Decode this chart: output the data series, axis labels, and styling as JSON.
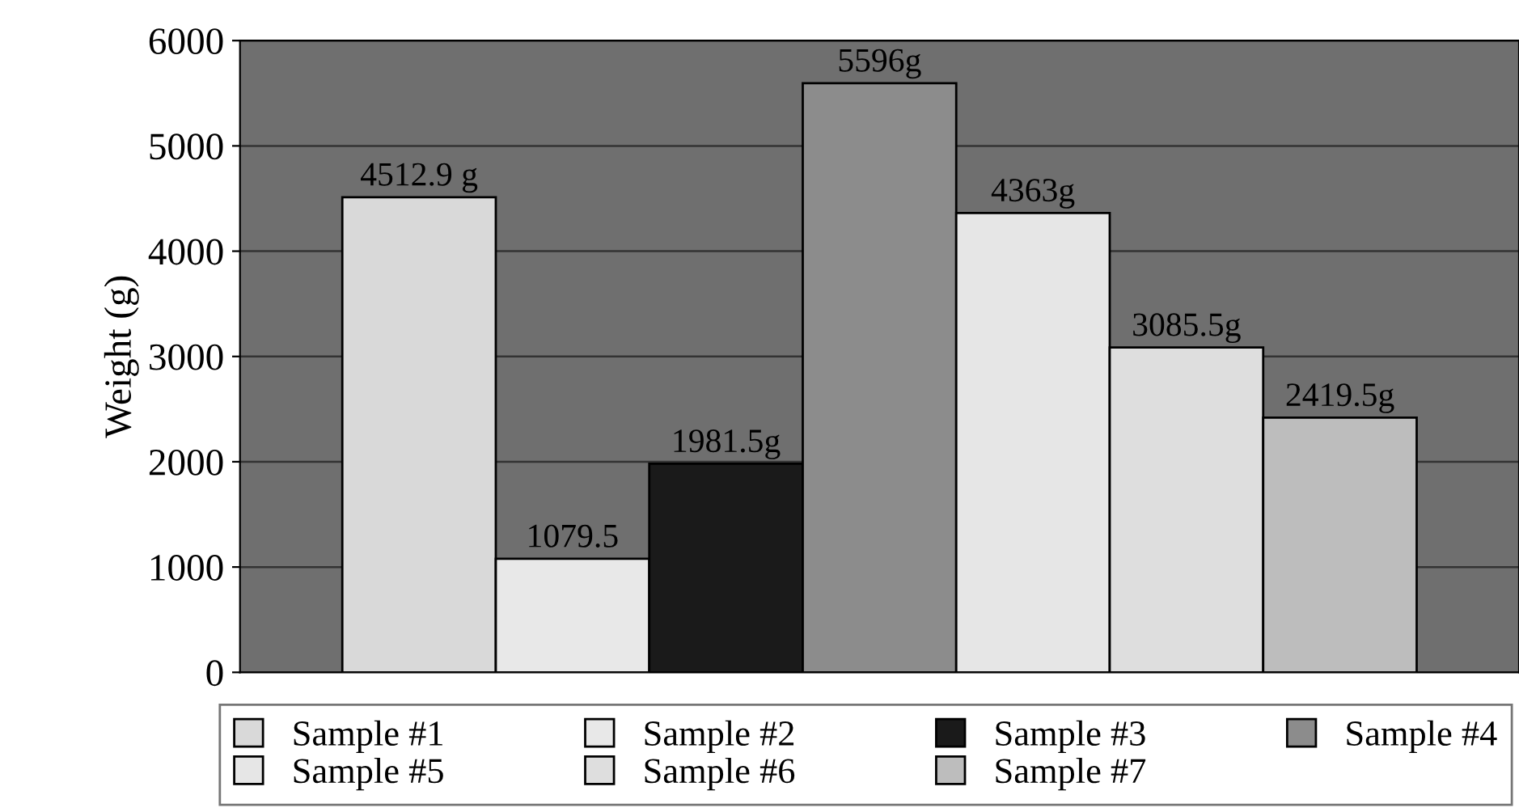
{
  "chart_data": {
    "type": "bar",
    "ylabel": "Weight (g)",
    "categories": [
      null
    ],
    "ylim": [
      0,
      6000
    ],
    "yticks": [
      0,
      1000,
      2000,
      3000,
      4000,
      5000,
      6000
    ],
    "grid": "y",
    "legend": "bottom",
    "series": [
      {
        "name": "Sample #1",
        "color": "#d9d9d9",
        "values": [
          4512.9
        ],
        "value_labels": [
          "4512.9 g"
        ]
      },
      {
        "name": "Sample #2",
        "color": "#e8e8e8",
        "values": [
          1079.5
        ],
        "value_labels": [
          "1079.5"
        ]
      },
      {
        "name": "Sample #3",
        "color": "#1a1a1a",
        "values": [
          1981.5
        ],
        "value_labels": [
          "1981.5g"
        ]
      },
      {
        "name": "Sample #4",
        "color": "#8c8c8c",
        "values": [
          5596
        ],
        "value_labels": [
          "5596g"
        ]
      },
      {
        "name": "Sample #5",
        "color": "#e6e6e6",
        "values": [
          4363
        ],
        "value_labels": [
          "4363g"
        ]
      },
      {
        "name": "Sample #6",
        "color": "#dedede",
        "values": [
          3085.5
        ],
        "value_labels": [
          "3085.5g"
        ]
      },
      {
        "name": "Sample #7",
        "color": "#bdbdbd",
        "values": [
          2419.5
        ],
        "value_labels": [
          "2419.5g"
        ]
      }
    ]
  }
}
